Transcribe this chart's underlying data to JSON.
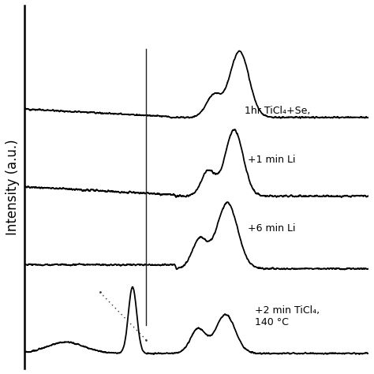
{
  "ylabel": "Intensity (a.u.)",
  "background_color": "#ffffff",
  "line_color": "#000000",
  "labels": [
    "+2 min TiCl₄,\n140 °C",
    "+6 min Li",
    "+1 min Li",
    "1hr TiCl₄+Se,"
  ],
  "label_fontsize": 9,
  "figsize": [
    4.74,
    4.74
  ],
  "dpi": 100,
  "vertical_line_x": 0.355,
  "vline_ymin": 0.12,
  "vline_ymax": 0.88,
  "spectrum_offsets": [
    0.78,
    0.52,
    0.28,
    0.0
  ],
  "spectrum_scale": 0.22,
  "xlim": [
    0.0,
    1.0
  ],
  "ylim": [
    -0.05,
    1.15
  ]
}
